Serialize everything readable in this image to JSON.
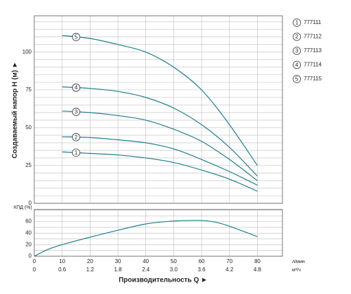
{
  "chart_data": [
    {
      "type": "line",
      "y_label": "Создаваемый напор H (м) ►",
      "x": [
        10,
        20,
        30,
        40,
        50,
        60,
        70,
        80
      ],
      "series": [
        {
          "name": "777111",
          "label": "1",
          "color": "#1b7d8c",
          "values": [
            34,
            33,
            32,
            30,
            27,
            22,
            16,
            8
          ]
        },
        {
          "name": "777112",
          "label": "2",
          "color": "#1b7d8c",
          "values": [
            44,
            43.5,
            42,
            40,
            36,
            29,
            21,
            12
          ]
        },
        {
          "name": "777113",
          "label": "3",
          "color": "#1b7d8c",
          "values": [
            61,
            60,
            58,
            55,
            49,
            41,
            29,
            15
          ]
        },
        {
          "name": "777114",
          "label": "4",
          "color": "#1b7d8c",
          "values": [
            77,
            76,
            74,
            70,
            63,
            52,
            37,
            18
          ]
        },
        {
          "name": "777115",
          "label": "5",
          "color": "#1b7d8c",
          "values": [
            111,
            109,
            105,
            100,
            90,
            75,
            52,
            25
          ]
        }
      ],
      "xlim": [
        0,
        89
      ],
      "xticks": [
        10,
        20,
        30,
        40,
        50,
        60,
        70,
        80
      ],
      "ylim": [
        0,
        124
      ],
      "yticks": [
        0,
        25,
        50,
        75,
        100
      ],
      "yminorticks": [
        5,
        10,
        15,
        20,
        30,
        35,
        40,
        45,
        55,
        60,
        65,
        70,
        80,
        85,
        90,
        95,
        105,
        110,
        115,
        120
      ],
      "grid": true,
      "legend": "right"
    },
    {
      "type": "line",
      "y_label": "КПД (%)",
      "x_label": "Производительность Q ►",
      "x_unit": "л/мин",
      "x2_unit": "м³/ч",
      "x": [
        0,
        5,
        10,
        20,
        30,
        40,
        50,
        60,
        65,
        70,
        80
      ],
      "series": [
        {
          "name": "КПД",
          "color": "#1b7d8c",
          "values": [
            0,
            12,
            20,
            33,
            45,
            56,
            61,
            62,
            59,
            52,
            34
          ]
        }
      ],
      "xlim": [
        0,
        89
      ],
      "xticks": [
        0,
        10,
        20,
        30,
        40,
        50,
        60,
        70,
        80
      ],
      "x2lim": [
        0,
        5.34
      ],
      "x2ticks": [
        0,
        0.6,
        1.2,
        1.8,
        2.4,
        {
          "value": 3,
          "label": "3.0"
        },
        3.6,
        4.2,
        4.8
      ],
      "ylim": [
        0,
        81
      ],
      "yticks": [
        0,
        20,
        40,
        60
      ],
      "yminorticks": [
        10,
        30,
        50,
        70,
        80
      ],
      "grid": true
    }
  ]
}
